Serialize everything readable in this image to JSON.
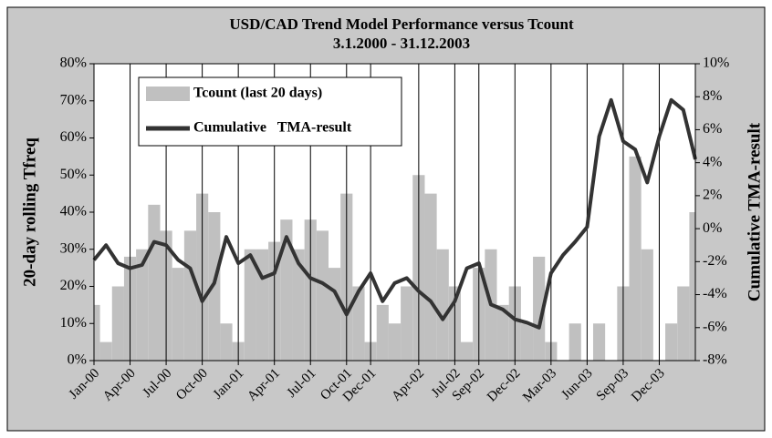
{
  "chart_data": {
    "type": "bar-line",
    "title": "USD/CAD Trend Model Performance versus Tcount",
    "subtitle": "3.1.2000 - 31.12.2003",
    "y_label": "20-day  rolling  Tfreq",
    "y2_label": "Cumulative TMA-result",
    "categories": [
      "Jan-00",
      null,
      null,
      "Apr-00",
      null,
      null,
      "Jul-00",
      null,
      null,
      "Oct-00",
      null,
      null,
      "Jan-01",
      null,
      null,
      "Apr-01",
      null,
      null,
      "Jul-01",
      null,
      null,
      "Oct-01",
      null,
      "Dec-01",
      null,
      null,
      null,
      "Apr-02",
      null,
      null,
      "Jul-02",
      null,
      "Sep-02",
      null,
      null,
      "Dec-02",
      null,
      null,
      "Mar-03",
      null,
      null,
      "Jun-03",
      null,
      null,
      "Sep-03",
      null,
      null,
      "Dec-03",
      null,
      null,
      null
    ],
    "series": [
      {
        "name": "Tcount (last 20 days)",
        "color": "#c0c0c0",
        "kind": "bar",
        "axis": "y",
        "values": [
          15,
          5,
          20,
          28,
          30,
          42,
          35,
          25,
          35,
          45,
          40,
          10,
          5,
          30,
          30,
          32,
          38,
          30,
          38,
          35,
          25,
          45,
          20,
          5,
          15,
          10,
          20,
          50,
          45,
          30,
          20,
          5,
          25,
          30,
          15,
          20,
          10,
          28,
          5,
          0,
          10,
          0,
          10,
          0,
          20,
          55,
          30,
          0,
          10,
          20,
          40
        ]
      },
      {
        "name": "Cumulative   TMA-result",
        "color": "#333333",
        "kind": "line",
        "axis": "y2",
        "values": [
          -1.9,
          -1,
          -2.1,
          -2.4,
          -2.2,
          -0.8,
          -1,
          -1.9,
          -2.4,
          -4.4,
          -3.3,
          -0.5,
          -2.1,
          -1.6,
          -3,
          -2.7,
          -0.5,
          -2.1,
          -3,
          -3.3,
          -3.8,
          -5.2,
          -3.8,
          -2.7,
          -4.4,
          -3.3,
          -3,
          -3.8,
          -4.4,
          -5.5,
          -4.4,
          -2.4,
          -2.1,
          -4.6,
          -4.9,
          -5.5,
          -5.7,
          -6,
          -2.7,
          -1.6,
          -0.8,
          0.1,
          5.6,
          7.8,
          5.3,
          4.8,
          2.8,
          5.6,
          7.8,
          7.2,
          4.2
        ]
      }
    ],
    "ylim": [
      0,
      80
    ],
    "yticks": [
      {
        "value": 0,
        "label": "0%"
      },
      {
        "value": 10,
        "label": "10%"
      },
      {
        "value": 20,
        "label": "20%"
      },
      {
        "value": 30,
        "label": "30%"
      },
      {
        "value": 40,
        "label": "40%"
      },
      {
        "value": 50,
        "label": "50%"
      },
      {
        "value": 60,
        "label": "60%"
      },
      {
        "value": 70,
        "label": "70%"
      },
      {
        "value": 80,
        "label": "80%"
      }
    ],
    "y2lim": [
      -8,
      10
    ],
    "y2ticks": [
      {
        "value": -8,
        "label": "-8%"
      },
      {
        "value": -6,
        "label": "-6%"
      },
      {
        "value": -4,
        "label": "-4%"
      },
      {
        "value": -2,
        "label": "-2%"
      },
      {
        "value": 0,
        "label": "0%"
      },
      {
        "value": 2,
        "label": "2%"
      },
      {
        "value": 4,
        "label": "4%"
      },
      {
        "value": 6,
        "label": "6%"
      },
      {
        "value": 8,
        "label": "8%"
      },
      {
        "value": 10,
        "label": "10%"
      }
    ],
    "x_grid": true,
    "legend": "upper-left"
  }
}
